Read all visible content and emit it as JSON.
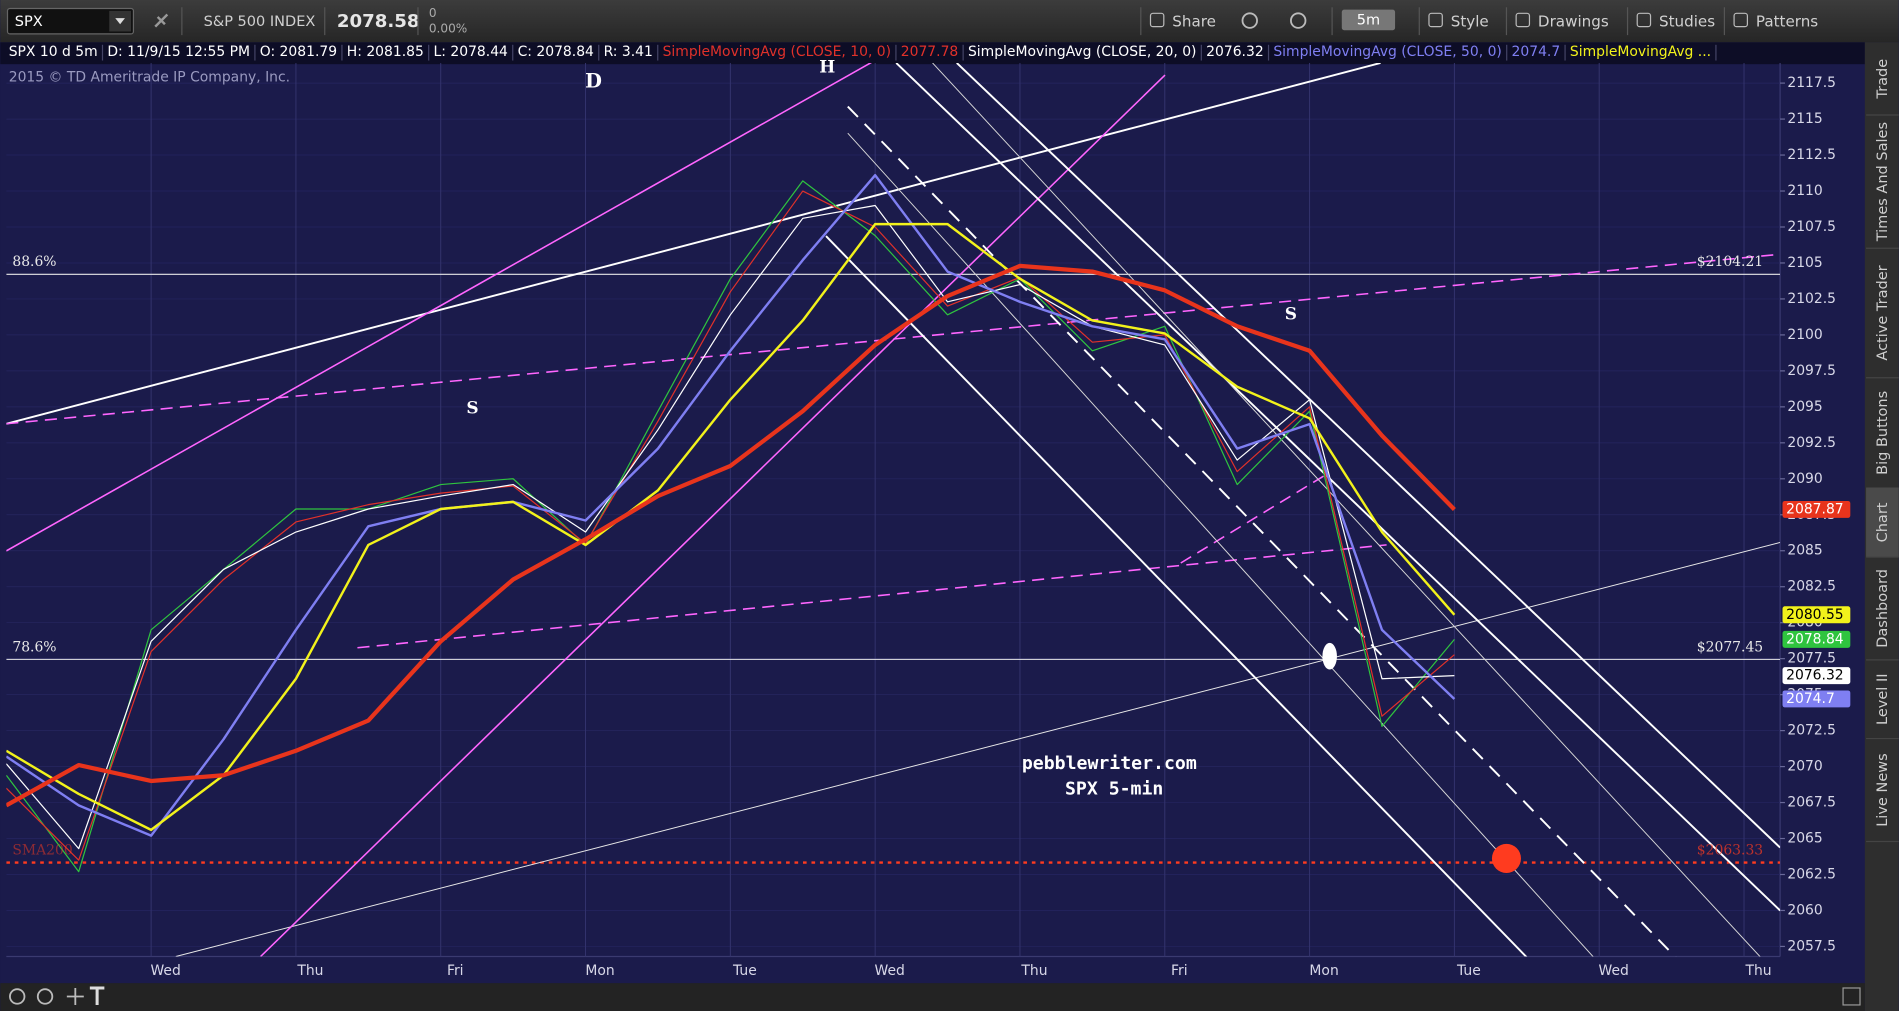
{
  "toolbar": {
    "symbol": "SPX",
    "description": "S&P 500 INDEX",
    "last": "2078.58",
    "change": "0",
    "change_pct": "0.00%",
    "buttons": [
      "Share",
      "5m",
      "Style",
      "Drawings",
      "Studies",
      "Patterns"
    ]
  },
  "study_header": {
    "symbol": "SPX 10 d 5m",
    "date": "D: 11/9/15 12:55 PM",
    "ohlc": [
      "O: 2081.79",
      "H: 2081.85",
      "L: 2078.44",
      "C: 2078.84",
      "R: 3.41"
    ]
  },
  "copyright": "2015 © TD Ameritrade IP Company, Inc.",
  "sidebar": {
    "tabs": [
      "Trade",
      "Times And Sales",
      "Active Trader",
      "Big Buttons",
      "Chart",
      "Dashboard",
      "Level II",
      "Live News"
    ]
  },
  "chart_data": {
    "type": "line",
    "categories": [
      null,
      null,
      "Wed",
      null,
      "Thu",
      null,
      "Fri",
      null,
      "Mon",
      null,
      "Tue",
      null,
      "Wed",
      null,
      "Thu",
      null,
      "Fri",
      null,
      "Mon",
      null,
      "Tue",
      null,
      "Wed",
      null,
      "Thu"
    ],
    "ylim": [
      2056.8,
      2118.9
    ],
    "yticks": [
      2057.5,
      2060,
      2062.5,
      2065,
      2067.5,
      2070,
      2072.5,
      2075,
      2077.5,
      2080,
      2082.5,
      2085,
      2087.5,
      2090,
      2092.5,
      2095,
      2097.5,
      2100,
      2102.5,
      2105,
      2107.5,
      2110,
      2112.5,
      2115,
      2117.5
    ],
    "grid": true,
    "series": [
      {
        "color": "#2fc43f",
        "width": 1,
        "badge": true,
        "values": [
          2069.4,
          2062.7,
          2079.5,
          2083.7,
          2087.9,
          2087.9,
          2089.6,
          2090.0,
          2085.4,
          2094.7,
          2103.9,
          2110.7,
          2106.9,
          2101.4,
          2103.9,
          2098.9,
          2100.6,
          2089.6,
          2094.7,
          2072.8,
          2078.84,
          null,
          null,
          null,
          null
        ]
      },
      {
        "name": "SimpleMovingAvg (CLOSE, 10, 0)",
        "color": "#e0312a",
        "width": 1,
        "badge": false,
        "values": [
          2068.5,
          2063.5,
          2078,
          2083,
          2087,
          2088.2,
          2089,
          2089.5,
          2085.5,
          2094,
          2103,
          2110,
          2107.5,
          2102,
          2104,
          2099.5,
          2100,
          2090.5,
          2095,
          2073.5,
          2077.78,
          null,
          null,
          null,
          null
        ]
      },
      {
        "name": "SimpleMovingAvg (CLOSE, 20, 0)",
        "color": "#ffffff",
        "width": 1,
        "badge": true,
        "values": [
          2070.2,
          2064.3,
          2078.7,
          2083.7,
          2086.3,
          2087.9,
          2088.8,
          2089.6,
          2086.3,
          2093.4,
          2101.4,
          2108.1,
          2109.0,
          2102.3,
          2103.5,
          2100.6,
          2099.3,
          2091.3,
          2095.5,
          2076.1,
          2076.32,
          null,
          null,
          null,
          null
        ]
      },
      {
        "name": "SimpleMovingAvg (CLOSE, 50, 0)",
        "color": "#7f7ff2",
        "width": 2,
        "badge": true,
        "values": [
          2070.7,
          2067.3,
          2065.2,
          2071.9,
          2079.5,
          2086.7,
          2087.9,
          2088.4,
          2087.1,
          2092.1,
          2098.9,
          2105.2,
          2111.1,
          2104.4,
          2102.3,
          2100.6,
          2099.7,
          2092.1,
          2093.8,
          2079.5,
          2074.7,
          null,
          null,
          null,
          null
        ]
      },
      {
        "name": "SimpleMovingAvg ...",
        "color": "#f2f21b",
        "width": 2,
        "badge": true,
        "values": [
          2071.1,
          2068.1,
          2065.6,
          2069.4,
          2076.1,
          2085.4,
          2087.9,
          2088.4,
          2085.4,
          2089.2,
          2095.5,
          2101.0,
          2107.7,
          2107.7,
          2103.9,
          2101.0,
          2100.1,
          2096.4,
          2094.2,
          2086.3,
          2080.55,
          null,
          null,
          null,
          null
        ]
      },
      {
        "color": "#e8341c",
        "width": 3.5,
        "badge": true,
        "values": [
          2067.3,
          2070.1,
          2069.0,
          2069.4,
          2071.1,
          2073.2,
          2078.7,
          2083.0,
          2085.8,
          2088.8,
          2090.9,
          2094.7,
          2099.3,
          2102.7,
          2104.8,
          2104.4,
          2103.1,
          2100.6,
          2098.9,
          2093.0,
          2087.87,
          null,
          null,
          null,
          null
        ]
      }
    ],
    "levels": [
      {
        "label": "88.6%",
        "value": 2104.21,
        "value_label": "$2104.21",
        "color": "#e8e8e8",
        "dotted": false
      },
      {
        "label": "78.6%",
        "value": 2077.45,
        "value_label": "$2077.45",
        "color": "#e8e8e8",
        "dotted": false
      },
      {
        "label": "SMA200",
        "value": 2063.33,
        "value_label": "$2063.33",
        "color": "#ff3b1f",
        "dotted": true
      }
    ],
    "annotations": [
      "D",
      "H",
      "S",
      "S",
      "pebblewriter.com",
      "SPX 5-min"
    ]
  }
}
